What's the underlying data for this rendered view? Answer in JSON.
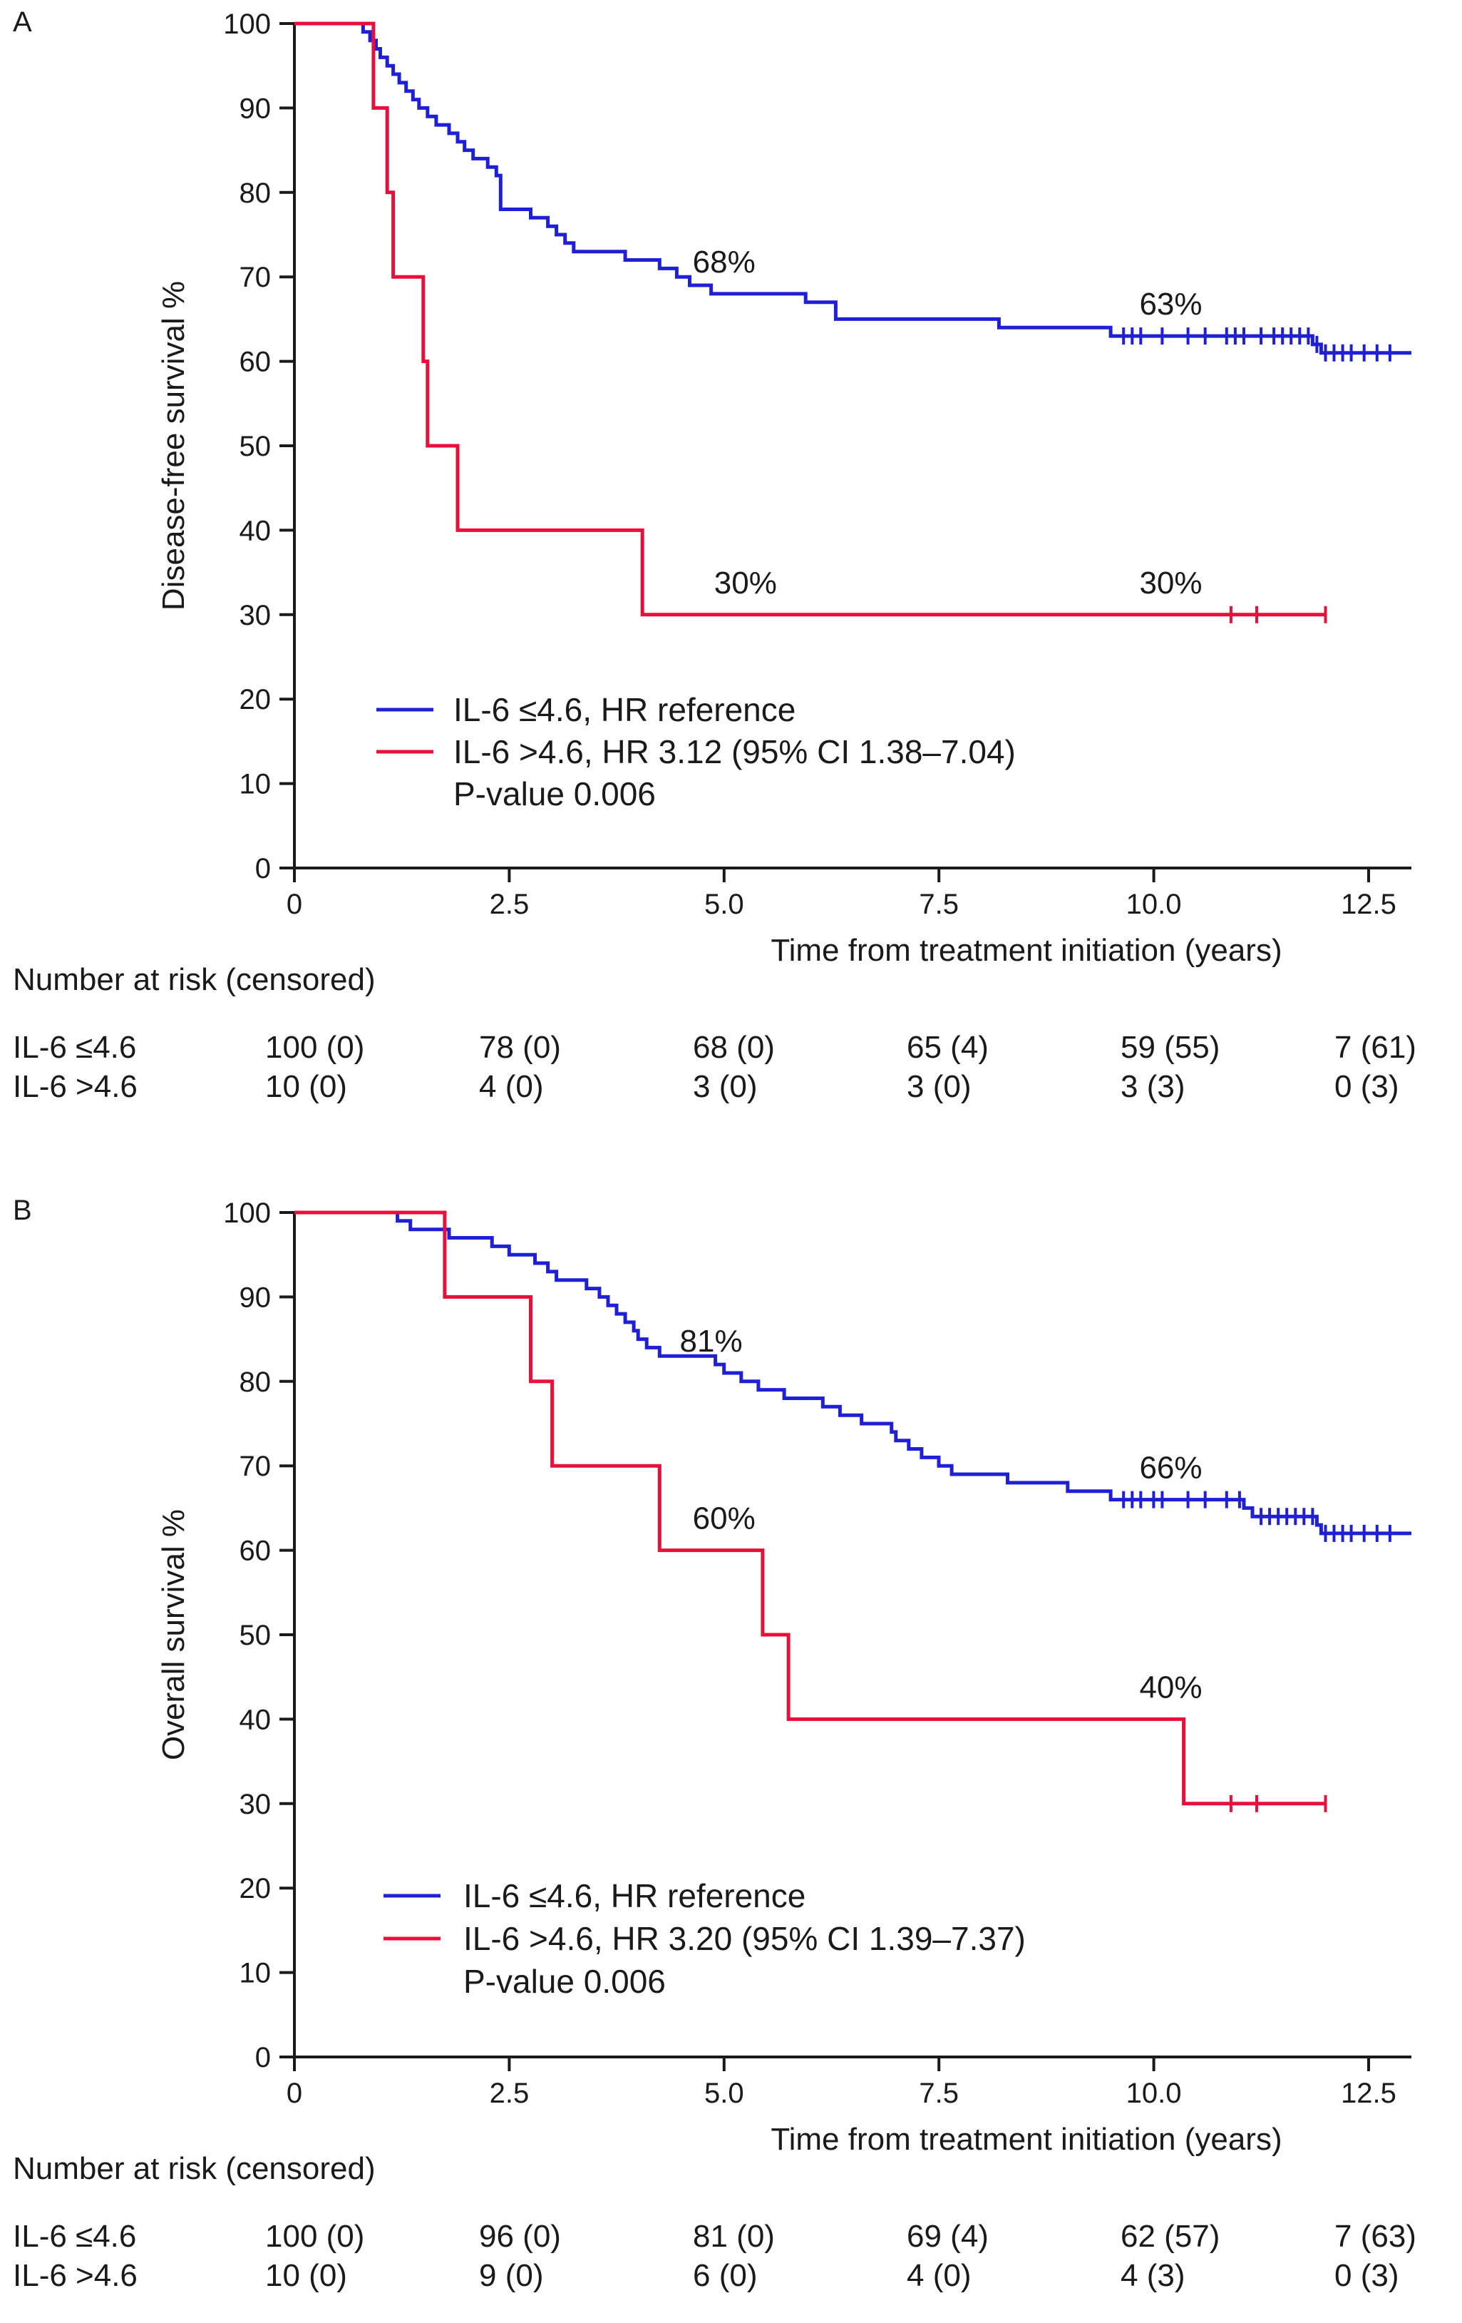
{
  "chart_data": [
    {
      "type": "line",
      "subtype": "kaplan-meier",
      "panel_label": "A",
      "xlabel": "Time from treatment initiation (years)",
      "ylabel": "Disease-free survival %",
      "xlim": [
        0,
        13
      ],
      "ylim": [
        0,
        100
      ],
      "x_ticks": [
        0,
        2.5,
        5.0,
        7.5,
        10.0,
        12.5
      ],
      "x_tick_labels": [
        "0",
        "2.5",
        "5.0",
        "7.5",
        "10.0",
        "12.5"
      ],
      "y_ticks": [
        0,
        10,
        20,
        30,
        40,
        50,
        60,
        70,
        80,
        90,
        100
      ],
      "y_tick_labels": [
        "0",
        "10",
        "20",
        "30",
        "40",
        "50",
        "60",
        "70",
        "80",
        "90",
        "100"
      ],
      "series": [
        {
          "name": "IL-6 ≤4.6",
          "color": "#1f1fd6",
          "steps": [
            [
              0,
              100
            ],
            [
              0.8,
              99
            ],
            [
              0.88,
              98
            ],
            [
              0.95,
              97
            ],
            [
              1.0,
              96
            ],
            [
              1.08,
              95
            ],
            [
              1.15,
              94
            ],
            [
              1.22,
              93
            ],
            [
              1.3,
              92
            ],
            [
              1.38,
              91
            ],
            [
              1.45,
              90
            ],
            [
              1.55,
              89
            ],
            [
              1.65,
              88
            ],
            [
              1.8,
              87
            ],
            [
              1.9,
              86
            ],
            [
              1.98,
              85
            ],
            [
              2.08,
              84
            ],
            [
              2.25,
              83
            ],
            [
              2.35,
              82
            ],
            [
              2.4,
              78
            ],
            [
              2.75,
              77
            ],
            [
              2.95,
              76
            ],
            [
              3.05,
              75
            ],
            [
              3.15,
              74
            ],
            [
              3.25,
              73
            ],
            [
              3.85,
              72
            ],
            [
              4.25,
              71
            ],
            [
              4.45,
              70
            ],
            [
              4.6,
              69
            ],
            [
              4.85,
              68
            ],
            [
              5.95,
              67
            ],
            [
              6.3,
              65
            ],
            [
              8.2,
              64
            ],
            [
              9.5,
              63
            ],
            [
              11.85,
              62
            ],
            [
              11.95,
              61
            ]
          ],
          "end_x": 13.0,
          "censor_x": [
            9.65,
            9.75,
            9.85,
            10.1,
            10.4,
            10.6,
            10.85,
            10.95,
            11.05,
            11.25,
            11.4,
            11.5,
            11.6,
            11.7,
            11.8,
            11.9,
            12.0,
            12.1,
            12.2,
            12.3,
            12.45,
            12.6,
            12.75
          ],
          "annotations": [
            {
              "x": 5.0,
              "y": 68,
              "text": "68%"
            },
            {
              "x": 10.2,
              "y": 63,
              "text": "63%"
            }
          ]
        },
        {
          "name": "IL-6 >4.6",
          "color": "#e8103a",
          "steps": [
            [
              0,
              100
            ],
            [
              0.92,
              90
            ],
            [
              1.08,
              80
            ],
            [
              1.15,
              70
            ],
            [
              1.5,
              60
            ],
            [
              1.55,
              50
            ],
            [
              1.9,
              40
            ],
            [
              4.05,
              30
            ]
          ],
          "end_x": 12.0,
          "censor_x": [
            10.9,
            11.2,
            12.0
          ],
          "annotations": [
            {
              "x": 5.25,
              "y": 30,
              "text": "30%"
            },
            {
              "x": 10.2,
              "y": 30,
              "text": "30%"
            }
          ]
        }
      ],
      "legend": [
        {
          "text": "IL-6 ≤4.6, HR reference",
          "color": "#1f1fd6"
        },
        {
          "text": "IL-6 >4.6, HR 3.12 (95% CI 1.38–7.04)",
          "color": "#e8103a"
        }
      ],
      "p_value": "P-value 0.006",
      "risk_table": {
        "title": "Number at risk (censored)",
        "rows": [
          {
            "label": "IL-6 ≤4.6",
            "values": [
              "100 (0)",
              "78 (0)",
              "68 (0)",
              "65 (4)",
              "59 (55)",
              "7 (61)"
            ]
          },
          {
            "label": "IL-6 >4.6",
            "values": [
              "10 (0)",
              "4 (0)",
              "3 (0)",
              "3 (0)",
              "3 (3)",
              "0 (3)"
            ]
          }
        ]
      }
    },
    {
      "type": "line",
      "subtype": "kaplan-meier",
      "panel_label": "B",
      "xlabel": "Time from treatment initiation (years)",
      "ylabel": "Overall survival %",
      "xlim": [
        0,
        13
      ],
      "ylim": [
        0,
        100
      ],
      "x_ticks": [
        0,
        2.5,
        5.0,
        7.5,
        10.0,
        12.5
      ],
      "x_tick_labels": [
        "0",
        "2.5",
        "5.0",
        "7.5",
        "10.0",
        "12.5"
      ],
      "y_ticks": [
        0,
        10,
        20,
        30,
        40,
        50,
        60,
        70,
        80,
        90,
        100
      ],
      "y_tick_labels": [
        "0",
        "10",
        "20",
        "30",
        "40",
        "50",
        "60",
        "70",
        "80",
        "90",
        "100"
      ],
      "series": [
        {
          "name": "IL-6 ≤4.6",
          "color": "#1f1fd6",
          "steps": [
            [
              0,
              100
            ],
            [
              1.2,
              99
            ],
            [
              1.35,
              98
            ],
            [
              1.8,
              97
            ],
            [
              2.3,
              96
            ],
            [
              2.5,
              95
            ],
            [
              2.8,
              94
            ],
            [
              2.95,
              93
            ],
            [
              3.05,
              92
            ],
            [
              3.4,
              91
            ],
            [
              3.55,
              90
            ],
            [
              3.65,
              89
            ],
            [
              3.75,
              88
            ],
            [
              3.85,
              87
            ],
            [
              3.95,
              86
            ],
            [
              4.0,
              85
            ],
            [
              4.1,
              84
            ],
            [
              4.25,
              83
            ],
            [
              4.9,
              82
            ],
            [
              5.0,
              81
            ],
            [
              5.2,
              80
            ],
            [
              5.4,
              79
            ],
            [
              5.7,
              78
            ],
            [
              6.15,
              77
            ],
            [
              6.35,
              76
            ],
            [
              6.6,
              75
            ],
            [
              6.95,
              74
            ],
            [
              7.0,
              73
            ],
            [
              7.15,
              72
            ],
            [
              7.3,
              71
            ],
            [
              7.5,
              70
            ],
            [
              7.65,
              69
            ],
            [
              8.3,
              68
            ],
            [
              9.0,
              67
            ],
            [
              9.5,
              66
            ],
            [
              11.05,
              65
            ],
            [
              11.15,
              64
            ],
            [
              11.9,
              63
            ],
            [
              11.95,
              62
            ]
          ],
          "end_x": 13.0,
          "censor_x": [
            9.65,
            9.75,
            9.85,
            10.0,
            10.1,
            10.4,
            10.6,
            10.85,
            11.0,
            11.25,
            11.35,
            11.45,
            11.55,
            11.65,
            11.75,
            11.85,
            12.0,
            12.1,
            12.2,
            12.3,
            12.45,
            12.6,
            12.75
          ],
          "annotations": [
            {
              "x": 4.85,
              "y": 81,
              "text": "81%"
            },
            {
              "x": 10.2,
              "y": 66,
              "text": "66%"
            }
          ]
        },
        {
          "name": "IL-6 >4.6",
          "color": "#e8103a",
          "steps": [
            [
              0,
              100
            ],
            [
              1.75,
              90
            ],
            [
              2.75,
              80
            ],
            [
              3.0,
              70
            ],
            [
              4.25,
              60
            ],
            [
              5.45,
              50
            ],
            [
              5.75,
              40
            ],
            [
              10.35,
              30
            ]
          ],
          "end_x": 12.0,
          "censor_x": [
            10.9,
            11.2,
            12.0
          ],
          "annotations": [
            {
              "x": 5.0,
              "y": 60,
              "text": "60%"
            },
            {
              "x": 10.2,
              "y": 40,
              "text": "40%"
            }
          ]
        }
      ],
      "legend": [
        {
          "text": "IL-6 ≤4.6, HR reference",
          "color": "#1f1fd6"
        },
        {
          "text": "IL-6 >4.6, HR 3.20 (95% CI 1.39–7.37)",
          "color": "#e8103a"
        }
      ],
      "p_value": "P-value 0.006",
      "risk_table": {
        "title": "Number at risk (censored)",
        "rows": [
          {
            "label": "IL-6 ≤4.6",
            "values": [
              "100 (0)",
              "96 (0)",
              "81 (0)",
              "69 (4)",
              "62 (57)",
              "7 (63)"
            ]
          },
          {
            "label": "IL-6 >4.6",
            "values": [
              "10 (0)",
              "9 (0)",
              "6 (0)",
              "4 (0)",
              "4 (3)",
              "0 (3)"
            ]
          }
        ]
      }
    }
  ]
}
